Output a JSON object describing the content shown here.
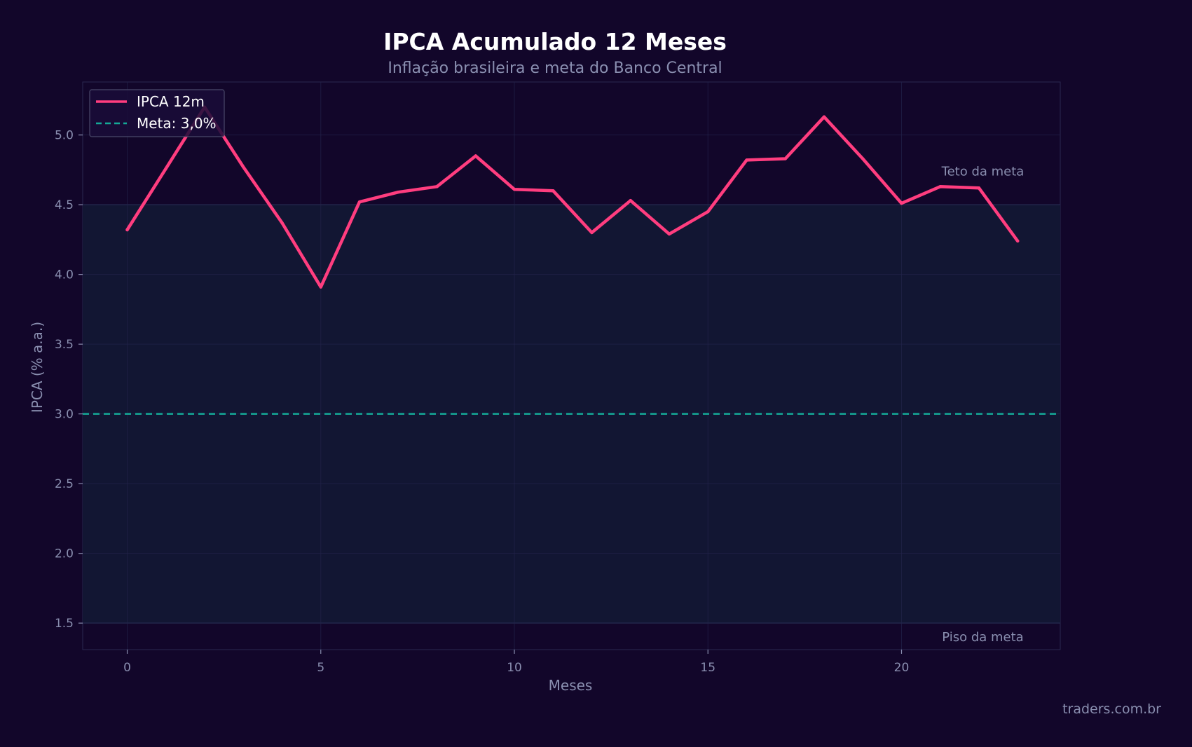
{
  "colors": {
    "background": "#12062a",
    "band_fill": "#121633",
    "series": "#ff3d7f",
    "meta": "#14a896",
    "grid": "#22244a",
    "text_muted": "#8a8fb0"
  },
  "watermark": "traders.com.br",
  "chart_data": {
    "type": "line",
    "title": "IPCA Acumulado 12 Meses",
    "subtitle": "Inflação brasileira e meta do Banco Central",
    "xlabel": "Meses",
    "ylabel": "IPCA (% a.a.)",
    "xlim": [
      -1.15,
      24.1
    ],
    "ylim": [
      1.31,
      5.38
    ],
    "x_ticks": [
      0,
      5,
      10,
      15,
      20
    ],
    "y_ticks": [
      1.5,
      2.0,
      2.5,
      3.0,
      3.5,
      4.0,
      4.5,
      5.0
    ],
    "grid": true,
    "legend_position": "upper-left",
    "series": [
      {
        "name": "IPCA 12m",
        "x": [
          0,
          1,
          2,
          3,
          4,
          5,
          6,
          7,
          8,
          9,
          10,
          11,
          12,
          13,
          14,
          15,
          16,
          17,
          18,
          19,
          20,
          21,
          22,
          23
        ],
        "values": [
          4.32,
          4.76,
          5.2,
          4.77,
          4.37,
          3.91,
          4.52,
          4.59,
          4.63,
          4.85,
          4.61,
          4.6,
          4.3,
          4.53,
          4.29,
          4.45,
          4.82,
          4.83,
          5.13,
          4.83,
          4.51,
          4.63,
          4.62,
          4.24
        ]
      }
    ],
    "reference_lines": [
      {
        "name": "Meta: 3,0%",
        "y": 3.0,
        "style": "dashed"
      }
    ],
    "band": {
      "from": 1.5,
      "to": 4.5
    },
    "annotations": [
      {
        "text": "Teto da meta",
        "x": 22.1,
        "y": 4.71
      },
      {
        "text": "Piso da meta",
        "x": 22.1,
        "y": 1.37
      }
    ]
  }
}
